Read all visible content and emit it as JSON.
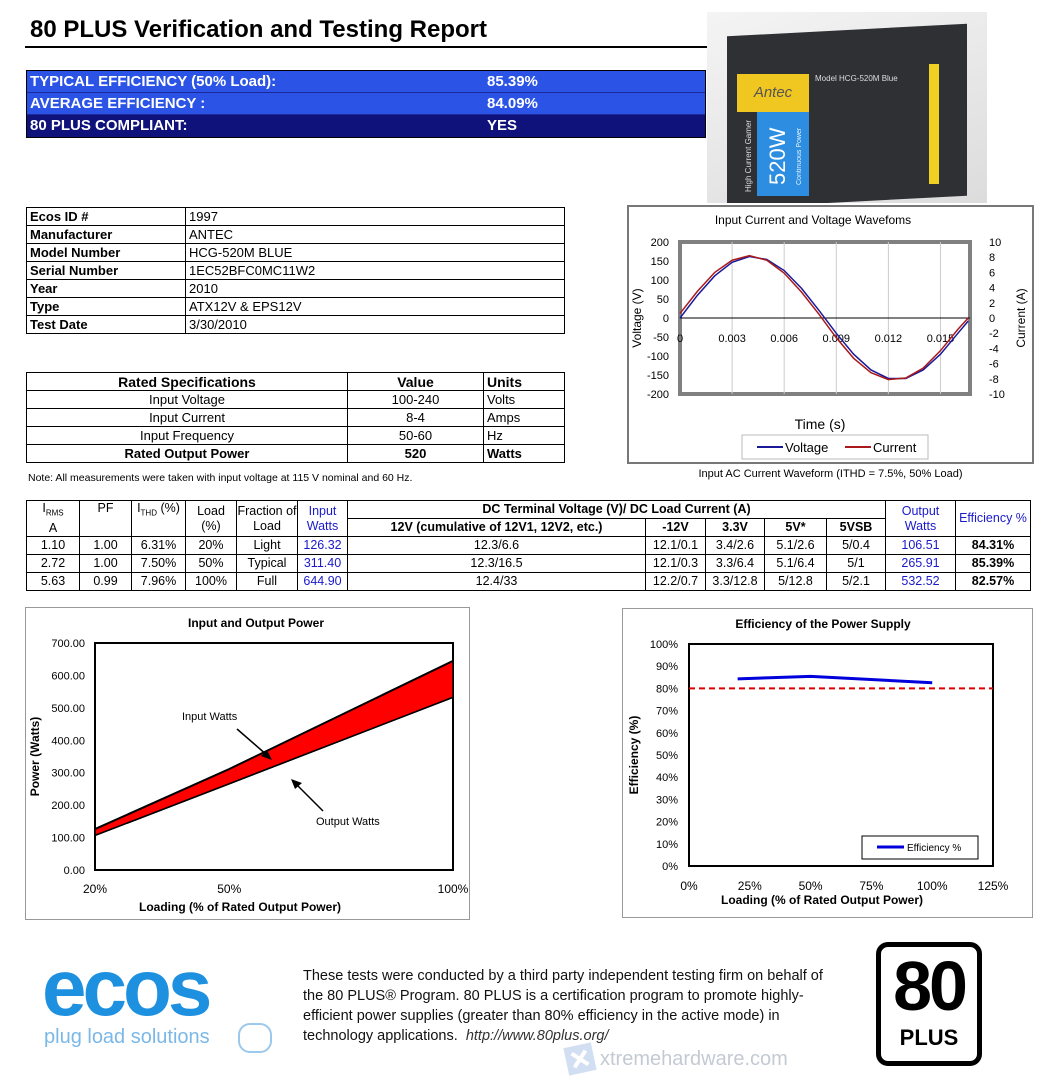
{
  "header": {
    "title": "80 PLUS Verification and Testing Report"
  },
  "summary": [
    {
      "label": "TYPICAL EFFICIENCY (50% Load):",
      "value": "85.39%"
    },
    {
      "label": "AVERAGE EFFICIENCY :",
      "value": "84.09%"
    },
    {
      "label": "80 PLUS COMPLIANT:",
      "value": "YES"
    }
  ],
  "colors": {
    "summary_blue": "#2b53e6",
    "summary_navy": "#0f127a",
    "input_watts": "#1a1acc",
    "power_fill": "#ff0000",
    "efficiency_line": "#0000dd",
    "threshold_line": "#dd0000"
  },
  "product_image": {
    "brand": "Antec",
    "wattage": "520W",
    "model_text": "Model HCG-520M Blue",
    "side_text": "High Current Gamer",
    "sub_text": "Continuous Power"
  },
  "info": [
    {
      "k": "Ecos ID #",
      "v": "1997"
    },
    {
      "k": "Manufacturer",
      "v": "ANTEC"
    },
    {
      "k": "Model Number",
      "v": "HCG-520M BLUE"
    },
    {
      "k": "Serial Number",
      "v": "1EC52BFC0MC11W2"
    },
    {
      "k": "Year",
      "v": "2010"
    },
    {
      "k": "Type",
      "v": "ATX12V & EPS12V"
    },
    {
      "k": "Test Date",
      "v": "3/30/2010"
    }
  ],
  "specs": {
    "headers": [
      "Rated Specifications",
      "Value",
      "Units"
    ],
    "rows": [
      [
        "Input Voltage",
        "100-240",
        "Volts"
      ],
      [
        "Input Current",
        "8-4",
        "Amps"
      ],
      [
        "Input Frequency",
        "50-60",
        "Hz"
      ],
      [
        "Rated Output Power",
        "520",
        "Watts"
      ]
    ]
  },
  "note": "Note: All measurements were taken with input voltage at 115 V nominal and 60 Hz.",
  "waveform_caption": "Input AC Current Waveform (ITHD = 7.5%, 50% Load)",
  "main_table": {
    "h_irms": "I",
    "h_irms_sub": "RMS",
    "h_irms_unit": "A",
    "h_pf": "PF",
    "h_ithd": "I",
    "h_ithd_sub": "THD",
    "h_ithd_unit": "(%)",
    "h_load": "Load (%)",
    "h_fraction": "Fraction of Load",
    "h_input": "Input Watts",
    "h_dc": "DC Terminal Voltage (V)/ DC Load Current (A)",
    "h_12v": "12V (cumulative of 12V1, 12V2, etc.)",
    "h_m12v": "-12V",
    "h_33v": "3.3V",
    "h_5v": "5V*",
    "h_5vsb": "5VSB",
    "h_output": "Output Watts",
    "h_eff": "Efficiency %",
    "rows": [
      [
        "1.10",
        "1.00",
        "6.31%",
        "20%",
        "Light",
        "126.32",
        "12.3/6.6",
        "12.1/0.1",
        "3.4/2.6",
        "5.1/2.6",
        "5/0.4",
        "106.51",
        "84.31%"
      ],
      [
        "2.72",
        "1.00",
        "7.50%",
        "50%",
        "Typical",
        "311.40",
        "12.3/16.5",
        "12.1/0.3",
        "3.3/6.4",
        "5.1/6.4",
        "5/1",
        "265.91",
        "85.39%"
      ],
      [
        "5.63",
        "0.99",
        "7.96%",
        "100%",
        "Full",
        "644.90",
        "12.4/33",
        "12.2/0.7",
        "3.3/12.8",
        "5/12.8",
        "5/2.1",
        "532.52",
        "82.57%"
      ]
    ]
  },
  "chart_data": [
    {
      "type": "line",
      "title": "Input Current and Voltage Wavefoms",
      "xlabel": "Time (s)",
      "ylabel": "Voltage (V)",
      "y2label": "Current (A)",
      "xlim": [
        0,
        0.0167
      ],
      "ylim": [
        -200,
        200
      ],
      "y2lim": [
        -10,
        10
      ],
      "xticks": [
        "0",
        "0.003",
        "0.006",
        "0.009",
        "0.012",
        "0.015"
      ],
      "yticks": [
        "200",
        "150",
        "100",
        "50",
        "0",
        "-50",
        "-100",
        "-150",
        "-200"
      ],
      "y2ticks": [
        "10",
        "8",
        "6",
        "4",
        "2",
        "0",
        "-2",
        "-4",
        "-6",
        "-8",
        "-10"
      ],
      "legend": "bottom",
      "x": [
        0,
        0.001,
        0.002,
        0.003,
        0.004,
        0.005,
        0.006,
        0.007,
        0.008,
        0.009,
        0.01,
        0.011,
        0.012,
        0.013,
        0.014,
        0.015,
        0.016,
        0.0166
      ],
      "series": [
        {
          "name": "Voltage",
          "axis": "left",
          "color": "#1a1a99",
          "values": [
            0,
            59.6,
            111,
            146.6,
            161.7,
            154,
            124.9,
            78,
            20.3,
            -40.3,
            -95.2,
            -136.8,
            -159.1,
            -159.1,
            -136.8,
            -95.2,
            -40.3,
            -8
          ]
        },
        {
          "name": "Current",
          "axis": "right",
          "color": "#aa1a1a",
          "values": [
            0.6,
            3.5,
            6.0,
            7.6,
            8.2,
            7.6,
            5.9,
            3.4,
            0.5,
            -2.6,
            -5.3,
            -7.2,
            -8.1,
            -7.9,
            -6.6,
            -4.3,
            -1.5,
            0
          ]
        }
      ]
    },
    {
      "type": "area",
      "title": "Input and Output Power",
      "xlabel": "Loading (% of Rated Output Power)",
      "ylabel": "Power (Watts)",
      "categories": [
        "20%",
        "50%",
        "100%"
      ],
      "x": [
        20,
        50,
        100
      ],
      "ylim": [
        0,
        700
      ],
      "yticks": [
        "0.00",
        "100.00",
        "200.00",
        "300.00",
        "400.00",
        "500.00",
        "600.00",
        "700.00"
      ],
      "series": [
        {
          "name": "Input Watts",
          "values": [
            126.32,
            311.4,
            644.9
          ]
        },
        {
          "name": "Output Watts",
          "values": [
            106.51,
            265.91,
            532.52
          ]
        }
      ],
      "annotations": [
        "Input Watts",
        "Output Watts"
      ]
    },
    {
      "type": "line",
      "title": "Efficiency of the Power Supply",
      "xlabel": "Loading (% of Rated Output Power)",
      "ylabel": "Efficiency (%)",
      "xlim": [
        0,
        125
      ],
      "ylim": [
        0,
        100
      ],
      "xticks": [
        "0%",
        "25%",
        "50%",
        "75%",
        "100%",
        "125%"
      ],
      "yticks": [
        "0%",
        "10%",
        "20%",
        "30%",
        "40%",
        "50%",
        "60%",
        "70%",
        "80%",
        "90%",
        "100%"
      ],
      "series": [
        {
          "name": "Efficiency %",
          "x": [
            20,
            50,
            100
          ],
          "values": [
            84.31,
            85.39,
            82.57
          ]
        }
      ],
      "threshold": 80,
      "legend": "bottom-right"
    }
  ],
  "footer": {
    "logo_text": "ecos",
    "logo_tagline": "plug load solutions",
    "text": "These tests were conducted by a third party independent testing firm on behalf of the 80 PLUS® Program. 80 PLUS is a certification program to promote highly-efficient power supplies (greater than 80% efficiency in the active mode) in technology applications.",
    "link": "http://www.80plus.org/",
    "badge_number": "80",
    "badge_text": "PLUS",
    "watermark": "xtremehardware.com"
  }
}
